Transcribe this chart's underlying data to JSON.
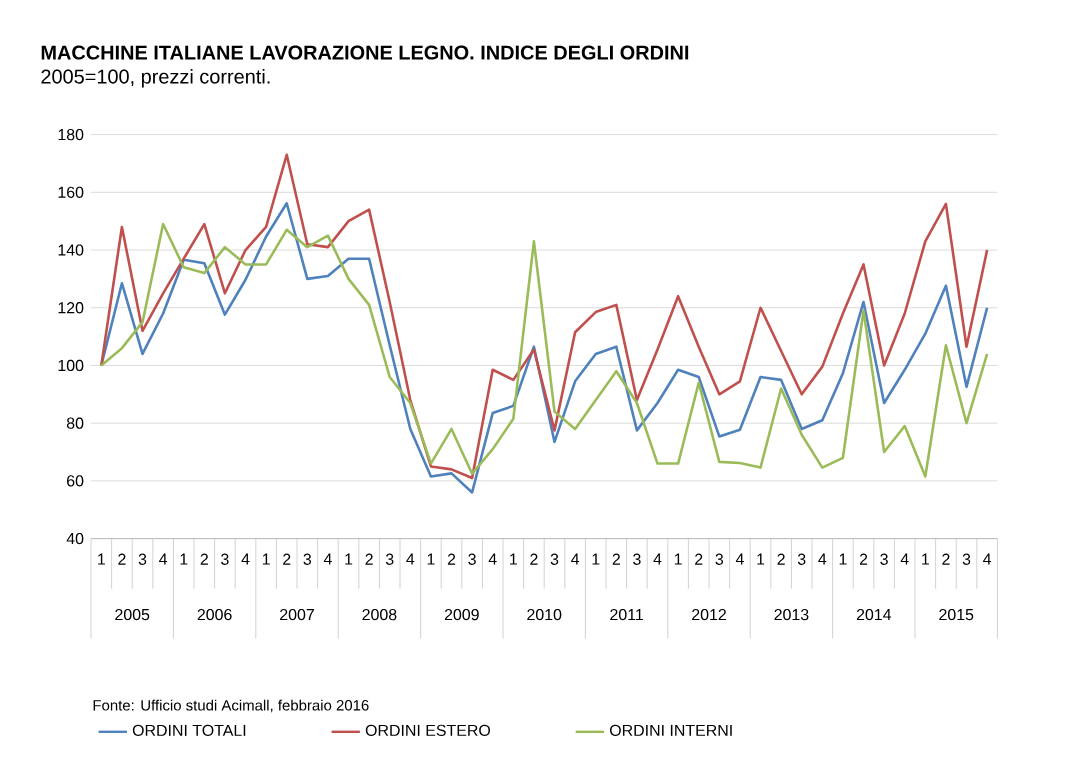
{
  "chart_data": {
    "type": "line",
    "title": "MACCHINE  ITALIANE LAVORAZIONE  LEGNO. INDICE DEGLI ORDINI",
    "subtitle": "2005=100,  prezzi correnti.",
    "categories": [
      "1",
      "2",
      "3",
      "4",
      "1",
      "2",
      "3",
      "4",
      "1",
      "2",
      "3",
      "4",
      "1",
      "2",
      "3",
      "4",
      "1",
      "2",
      "3",
      "4",
      "1",
      "2",
      "3",
      "4",
      "1",
      "2",
      "3",
      "4",
      "1",
      "2",
      "3",
      "4",
      "1",
      "2",
      "3",
      "4",
      "1",
      "2",
      "3",
      "4",
      "1",
      "2",
      "3",
      "4"
    ],
    "series": [
      {
        "name": "ORDINI TOTALI",
        "color": "#4f81bd",
        "values": [
          100,
          128.5,
          104,
          118,
          136.6,
          135.4,
          117.6,
          129.7,
          144.7,
          156.2,
          130,
          131,
          137,
          137,
          107,
          78,
          61.5,
          62.6,
          56,
          83.5,
          86,
          106.5,
          73.5,
          94.5,
          104,
          106.5,
          77.5,
          87,
          98.5,
          96,
          75.4,
          77.7,
          96,
          95,
          78,
          81,
          97.3,
          122,
          87,
          98.5,
          111,
          127.6,
          92.6,
          120
        ]
      },
      {
        "name": "ORDINI ESTERO",
        "color": "#c0504d",
        "values": [
          100,
          148,
          112,
          125,
          137,
          149,
          125,
          140,
          148,
          173,
          142,
          141,
          150,
          154,
          122,
          88,
          65,
          64,
          61,
          98.5,
          95,
          105.5,
          77.5,
          111.5,
          118.5,
          121,
          88,
          105.5,
          124,
          106.5,
          90,
          94.5,
          120,
          105,
          90,
          99.6,
          118,
          135,
          100,
          118,
          143,
          156,
          106.5,
          140
        ]
      },
      {
        "name": "ORDINI INTERNI",
        "color": "#9bbb59",
        "values": [
          100,
          106,
          115,
          149,
          134,
          132,
          141,
          135,
          135,
          147,
          141,
          145,
          130,
          121,
          96,
          87,
          66,
          78,
          62.5,
          71,
          81.5,
          143,
          84,
          78,
          88,
          98,
          87,
          66,
          66,
          94,
          66.6,
          66.2,
          64.6,
          92,
          76,
          64.6,
          68,
          119,
          70,
          79,
          61.5,
          107,
          80,
          104
        ]
      }
    ],
    "ylim": [
      40,
      180
    ],
    "yticks": [
      40,
      60,
      80,
      100,
      120,
      140,
      160,
      180
    ],
    "grid": "y",
    "legend": "bottom",
    "marker": "none",
    "annotations": [
      "2005",
      "2006",
      "2007",
      "2008",
      "2009",
      "2010",
      "2011",
      "2012",
      "2013",
      "2014",
      "2015",
      "Fonte: Ufficio studi Acimall, febbraio 2016"
    ]
  }
}
